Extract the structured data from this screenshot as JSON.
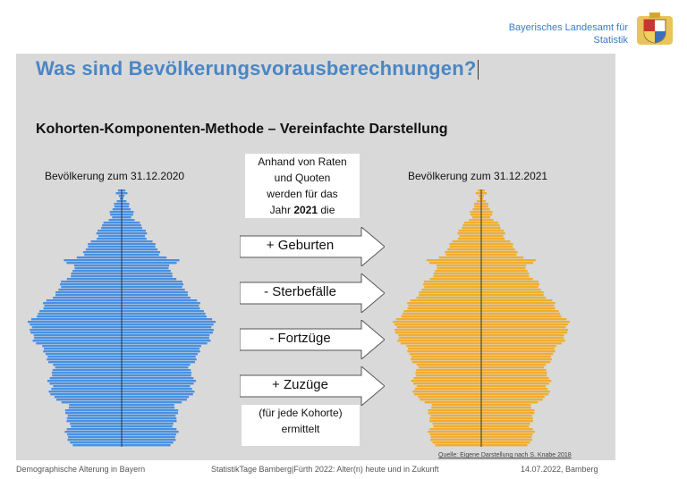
{
  "header": {
    "institution_line1": "Bayerisches Landesamt für",
    "institution_line2": "Statistik",
    "logo_icon": "bavarian-coat-of-arms-icon"
  },
  "slide": {
    "title": "Was sind Bevölkerungsvorausberechnungen?",
    "subtitle": "Kohorten-Komponenten-Methode – Vereinfachte Darstellung",
    "left_label": "Bevölkerung zum 31.12.2020",
    "right_label": "Bevölkerung zum 31.12.2021",
    "center_line1": "Anhand von Raten",
    "center_line2": "und Quoten",
    "center_line3": "werden für das",
    "center_line4_pre": "Jahr ",
    "center_line4_year": "2021",
    "center_line4_post": " die",
    "arrows": [
      "+ Geburten",
      "- Sterbefälle",
      "- Fortzüge",
      "+ Zuzüge"
    ],
    "bottom_line1": "(für jede Kohorte)",
    "bottom_line2": "ermittelt",
    "source": "Quelle: Eigene Darstellung nach S. Knabe 2018",
    "colors": {
      "left_pyramid": "#4a90e2",
      "right_pyramid": "#f0ad2e"
    }
  },
  "footer": {
    "left": "Demographische Alterung in Bayern",
    "center": "StatistikTage Bamberg|Fürth 2022: Alter(n) heute und in Zukunft",
    "right": "14.07.2022, Bamberg"
  }
}
